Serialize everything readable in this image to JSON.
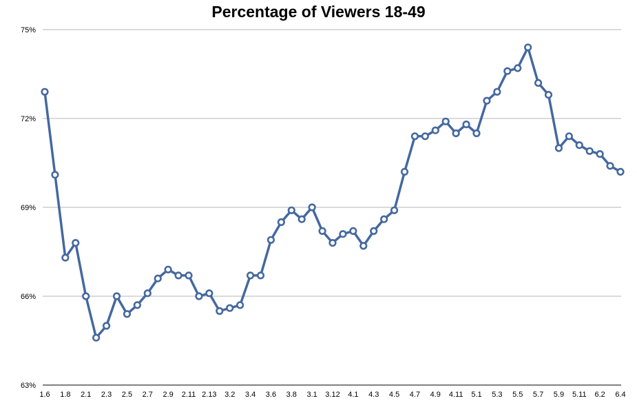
{
  "chart_data": {
    "type": "line",
    "title": "Percentage of Viewers 18-49",
    "xlabel": "",
    "ylabel": "",
    "ylim": [
      63,
      75
    ],
    "y_ticks": [
      "63%",
      "66%",
      "69%",
      "72%",
      "75%"
    ],
    "grid": true,
    "legend": "none",
    "x_tick_labels": [
      "1.6",
      "1.8",
      "2.1",
      "2.3",
      "2.5",
      "2.7",
      "2.9",
      "2.11",
      "2.13",
      "3.2",
      "3.4",
      "3.6",
      "3.8",
      "3.1",
      "3.12",
      "4.1",
      "4.3",
      "4.5",
      "4.7",
      "4.9",
      "4.11",
      "5.1",
      "5.3",
      "5.5",
      "5.7",
      "5.9",
      "5.11",
      "6.2",
      "6.4"
    ],
    "values": [
      72.9,
      70.1,
      67.3,
      67.8,
      66.0,
      64.6,
      65.0,
      66.0,
      65.4,
      65.7,
      66.1,
      66.6,
      66.9,
      66.7,
      66.7,
      66.0,
      66.1,
      65.5,
      65.6,
      65.7,
      66.7,
      66.7,
      67.9,
      68.5,
      68.9,
      68.6,
      69.0,
      68.2,
      67.8,
      68.1,
      68.2,
      67.7,
      68.2,
      68.6,
      68.9,
      70.2,
      71.4,
      71.4,
      71.6,
      71.9,
      71.5,
      71.8,
      71.5,
      72.6,
      72.9,
      73.6,
      73.7,
      74.4,
      73.2,
      72.8,
      71.0,
      71.4,
      71.1,
      70.9,
      70.8,
      70.4,
      70.2
    ],
    "colors": {
      "line": "#45689f",
      "marker_fill": "#ffffff",
      "grid": "#b5b5b5",
      "axis": "#000000",
      "text": "#000000"
    }
  }
}
